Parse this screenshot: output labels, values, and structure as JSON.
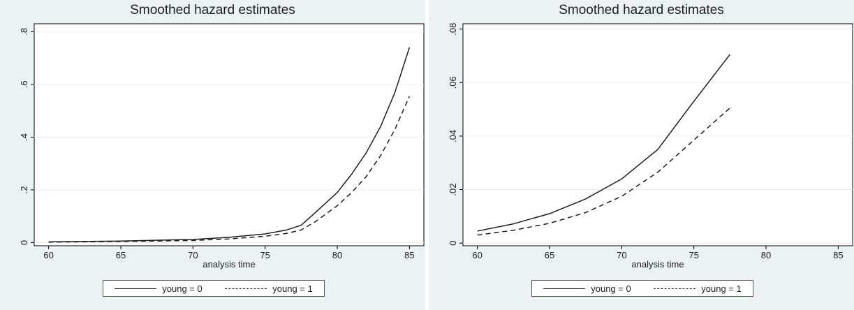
{
  "chart_data": [
    {
      "type": "line",
      "title": "Smoothed hazard estimates",
      "xlabel": "analysis time",
      "ylabel": "",
      "xlim": [
        59,
        86
      ],
      "ylim": [
        -0.012,
        0.83
      ],
      "xticks": [
        60,
        65,
        70,
        75,
        80,
        85
      ],
      "xtick_labels": [
        "60",
        "65",
        "70",
        "75",
        "80",
        "85"
      ],
      "yticks": [
        0,
        0.2,
        0.4,
        0.6,
        0.8
      ],
      "ytick_labels": [
        "0",
        ".2",
        ".4",
        ".6",
        ".8"
      ],
      "grid": true,
      "legend_position": "bottom",
      "series": [
        {
          "name": "young = 0",
          "style": "solid",
          "x": [
            60,
            65,
            70,
            72.5,
            75,
            76.5,
            77.5,
            78.5,
            80,
            81,
            82,
            83,
            84,
            85
          ],
          "y": [
            0.003,
            0.006,
            0.012,
            0.02,
            0.033,
            0.048,
            0.066,
            0.115,
            0.19,
            0.26,
            0.34,
            0.44,
            0.57,
            0.74
          ]
        },
        {
          "name": "young = 1",
          "style": "dashed",
          "x": [
            60,
            65,
            70,
            72.5,
            75,
            76.5,
            77.5,
            78.5,
            80,
            81,
            82,
            83,
            84,
            85
          ],
          "y": [
            0.002,
            0.004,
            0.008,
            0.014,
            0.024,
            0.035,
            0.048,
            0.08,
            0.14,
            0.19,
            0.25,
            0.33,
            0.43,
            0.555
          ]
        }
      ]
    },
    {
      "type": "line",
      "title": "Smoothed hazard estimates",
      "xlabel": "analysis time",
      "ylabel": "",
      "xlim": [
        59,
        86
      ],
      "ylim": [
        -0.001,
        0.082
      ],
      "xticks": [
        60,
        65,
        70,
        75,
        80,
        85
      ],
      "xtick_labels": [
        "60",
        "65",
        "70",
        "75",
        "80",
        "85"
      ],
      "yticks": [
        0,
        0.02,
        0.04,
        0.06,
        0.08
      ],
      "ytick_labels": [
        "0",
        ".02",
        ".04",
        ".06",
        ".08"
      ],
      "grid": true,
      "legend_position": "bottom",
      "series": [
        {
          "name": "young = 0",
          "style": "solid",
          "x": [
            60,
            62.5,
            65,
            67.5,
            70,
            72.5,
            75,
            77.5
          ],
          "y": [
            0.0045,
            0.0072,
            0.011,
            0.0165,
            0.024,
            0.035,
            0.053,
            0.0705
          ]
        },
        {
          "name": "young = 1",
          "style": "dashed",
          "x": [
            60,
            62.5,
            65,
            67.5,
            70,
            72.5,
            75,
            77.5
          ],
          "y": [
            0.003,
            0.0048,
            0.0074,
            0.0114,
            0.0175,
            0.0265,
            0.0385,
            0.0505
          ]
        }
      ]
    }
  ]
}
